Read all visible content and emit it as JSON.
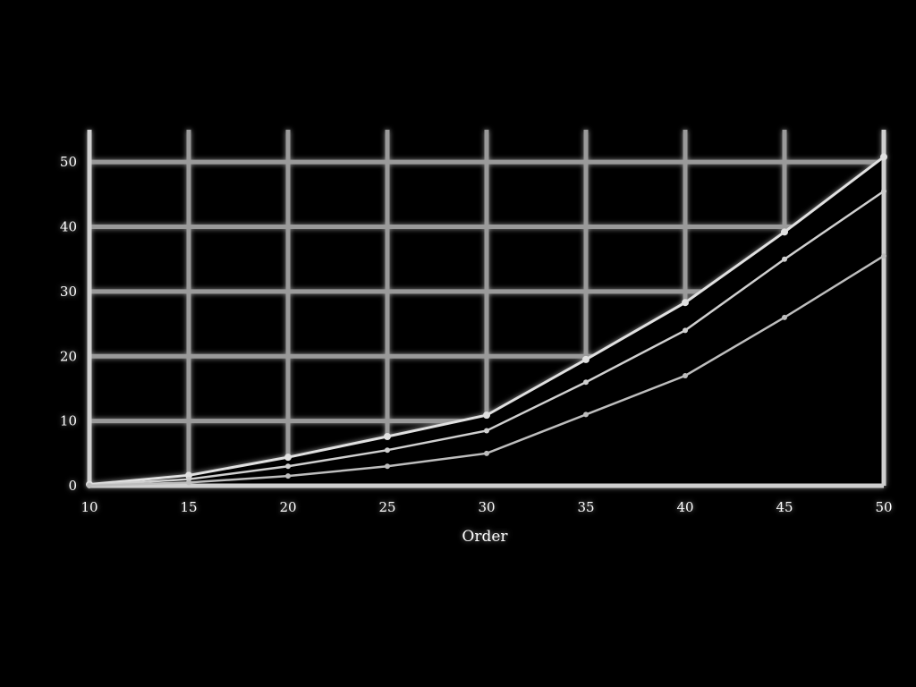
{
  "chart_data": {
    "type": "line",
    "title": "",
    "xlabel": "Order",
    "ylabel": "",
    "xlim": [
      10,
      50
    ],
    "ylim": [
      0,
      50
    ],
    "x_ticks": [
      10,
      15,
      20,
      25,
      30,
      35,
      40,
      45,
      50
    ],
    "y_ticks": [
      0,
      10,
      20,
      30,
      40,
      50
    ],
    "grid": true,
    "legend": "none",
    "colors": {
      "background": "#000000",
      "grid": "#9a9a9a",
      "axis": "#cfcfcf",
      "text": "#ffffff",
      "series": [
        "#e0e0e0",
        "#cfcfcf",
        "#bdbdbd"
      ]
    },
    "x": [
      10,
      15,
      20,
      25,
      30,
      35,
      40,
      45,
      50
    ],
    "series": [
      {
        "values": [
          0.2,
          1.6,
          4.4,
          7.6,
          10.9,
          19.5,
          28.3,
          39.2,
          50.8
        ]
      },
      {
        "values": [
          0.1,
          1.0,
          3.0,
          5.5,
          8.5,
          16.0,
          24.0,
          35.0,
          45.5
        ]
      },
      {
        "values": [
          0.0,
          0.5,
          1.5,
          3.0,
          5.0,
          11.0,
          17.0,
          26.0,
          35.5
        ]
      }
    ]
  }
}
